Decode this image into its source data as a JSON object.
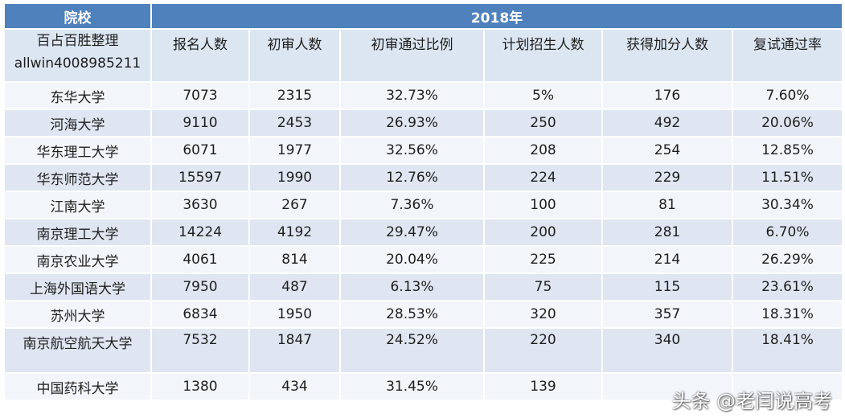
{
  "table": {
    "header_top": {
      "school_col": "院校",
      "year": "2018年"
    },
    "header_sub": {
      "school_note_line1": "百占百胜整理",
      "school_note_line2": "allwin4008985211",
      "columns": [
        "报名人数",
        "初审人数",
        "初审通过比例",
        "计划招生人数",
        "获得加分人数",
        "复试通过率"
      ]
    },
    "rows": [
      [
        "东华大学",
        "7073",
        "2315",
        "32.73%",
        "5%",
        "176",
        "7.60%"
      ],
      [
        "河海大学",
        "9110",
        "2453",
        "26.93%",
        "250",
        "492",
        "20.06%"
      ],
      [
        "华东理工大学",
        "6071",
        "1977",
        "32.56%",
        "208",
        "254",
        "12.85%"
      ],
      [
        "华东师范大学",
        "15597",
        "1990",
        "12.76%",
        "224",
        "229",
        "11.51%"
      ],
      [
        "江南大学",
        "3630",
        "267",
        "7.36%",
        "100",
        "81",
        "30.34%"
      ],
      [
        "南京理工大学",
        "14224",
        "4192",
        "29.47%",
        "200",
        "281",
        "6.70%"
      ],
      [
        "南京农业大学",
        "4061",
        "814",
        "20.04%",
        "225",
        "214",
        "26.29%"
      ],
      [
        "上海外国语大学",
        "7950",
        "487",
        "6.13%",
        "75",
        "115",
        "23.61%"
      ],
      [
        "苏州大学",
        "6834",
        "1950",
        "28.53%",
        "320",
        "357",
        "18.31%"
      ],
      [
        "南京航空航天大学",
        "7532",
        "1847",
        "24.52%",
        "220",
        "340",
        "18.41%"
      ],
      [
        "中国药科大学",
        "1380",
        "434",
        "31.45%",
        "139",
        "",
        ""
      ]
    ]
  },
  "watermark": "头条 @老闫说高考",
  "colors": {
    "header": "#4f81bd",
    "band_dark": "#dfe6f1",
    "band_light": "#f2f5fa"
  }
}
